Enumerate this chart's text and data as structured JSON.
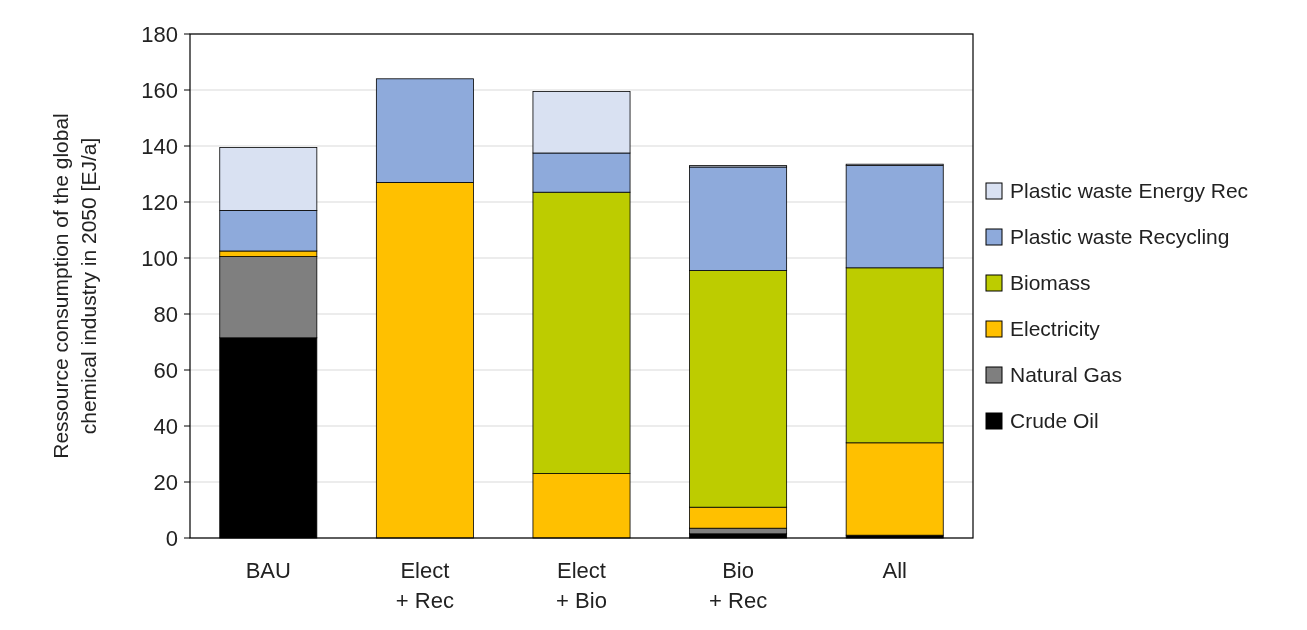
{
  "chart_data": {
    "type": "bar",
    "stacked": true,
    "ylabel": "Ressource consumption of the global chemical industry in 2050 [EJ/a]",
    "categories": [
      "BAU",
      "Elect\n+ Rec",
      "Elect\n+ Bio",
      "Bio\n+ Rec",
      "All"
    ],
    "series": [
      {
        "name": "Crude Oil",
        "color": "#000000",
        "values": [
          71.5,
          0,
          0,
          1.5,
          1
        ]
      },
      {
        "name": "Natural Gas",
        "color": "#7f7f7f",
        "values": [
          29,
          0,
          0,
          2,
          0
        ]
      },
      {
        "name": "Electricity",
        "color": "#ffc000",
        "values": [
          2,
          127,
          23,
          7.5,
          33
        ]
      },
      {
        "name": "Biomass",
        "color": "#bdcc00",
        "values": [
          0,
          0,
          100.5,
          84.5,
          62.5
        ]
      },
      {
        "name": "Plastic waste Recycling",
        "color": "#8eaadb",
        "values": [
          14.5,
          37,
          14,
          37,
          36.5
        ]
      },
      {
        "name": "Plastic waste Energy Rec",
        "color": "#d9e1f2",
        "values": [
          22.5,
          0,
          22,
          0.5,
          0.5
        ]
      }
    ],
    "ylim": [
      0,
      180
    ],
    "yticks": [
      0,
      20,
      40,
      60,
      80,
      100,
      120,
      140,
      160,
      180
    ],
    "grid": "y",
    "legend": "right"
  }
}
